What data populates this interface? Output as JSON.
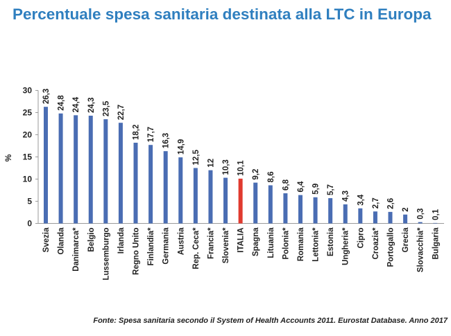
{
  "chart_data": {
    "type": "bar",
    "title": "Percentuale spesa sanitaria destinata alla LTC in Europa",
    "ylabel": "%",
    "xlabel": "",
    "ylim": [
      0,
      30
    ],
    "yticks": [
      0,
      5,
      10,
      15,
      20,
      25,
      30
    ],
    "grid": false,
    "categories": [
      "Svezia",
      "Olanda",
      "Danimarca*",
      "Belgio",
      "Lussemburgo",
      "Irlanda",
      "Regno Unito",
      "Finlandia*",
      "Germania",
      "Austria",
      "Rep. Ceca*",
      "Francia*",
      "Slovenia*",
      "ITALIA",
      "Spagna",
      "Lituania",
      "Polonia*",
      "Romania",
      "Lettonia*",
      "Estonia",
      "Ungheria*",
      "Cipro",
      "Croazia*",
      "Portogallo",
      "Grecia",
      "Slovacchia*",
      "Bulgaria"
    ],
    "values": [
      26.3,
      24.8,
      24.4,
      24.3,
      23.5,
      22.7,
      18.2,
      17.7,
      16.3,
      14.9,
      12.5,
      12,
      10.3,
      10.1,
      9.2,
      8.6,
      6.8,
      6.4,
      5.9,
      5.7,
      4.3,
      3.4,
      2.7,
      2.6,
      2,
      0.3,
      0.1
    ],
    "value_labels": [
      "26,3",
      "24,8",
      "24,4",
      "24,3",
      "23,5",
      "22,7",
      "18,2",
      "17,7",
      "16,3",
      "14,9",
      "12,5",
      "12",
      "10,3",
      "10,1",
      "9,2",
      "8,6",
      "6,8",
      "6,4",
      "5,9",
      "5,7",
      "4,3",
      "3,4",
      "2,7",
      "2,6",
      "2",
      "0,3",
      "0,1"
    ],
    "colors": {
      "default": "#4a6db3",
      "highlight": "#e03a2f"
    },
    "highlight_category": "ITALIA"
  },
  "source": "Fonte: Spesa sanitaria secondo il System of Health Accounts 2011. Eurostat Database. Anno 2017"
}
